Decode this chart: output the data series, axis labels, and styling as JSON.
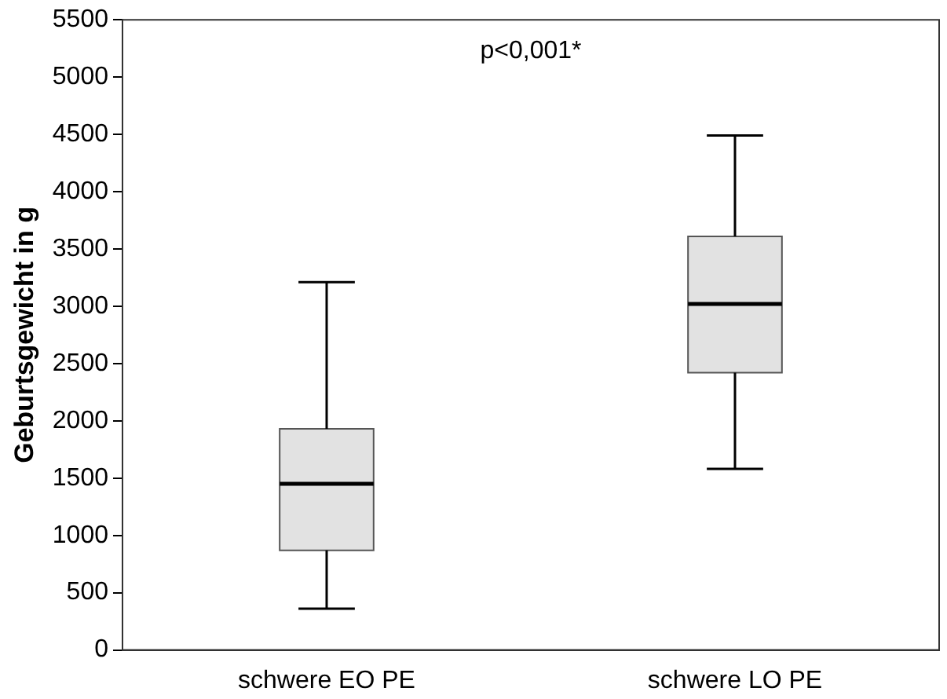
{
  "chart_data": {
    "type": "box",
    "ylabel": "Geburtsgewicht in g",
    "categories": [
      "schwere EO PE",
      "schwere LO PE"
    ],
    "boxes": [
      {
        "low": 360,
        "q1": 870,
        "median": 1450,
        "q3": 1930,
        "high": 3210
      },
      {
        "low": 1580,
        "q1": 2420,
        "median": 3020,
        "q3": 3610,
        "high": 4490
      }
    ],
    "color": "#e2e2e2",
    "ylim": [
      0,
      5500
    ],
    "yticks": [
      0,
      500,
      1000,
      1500,
      2000,
      2500,
      3000,
      3500,
      4000,
      4500,
      5000,
      5500
    ],
    "annotations": [
      "p<0,001*"
    ],
    "grid": false,
    "legend": false
  }
}
